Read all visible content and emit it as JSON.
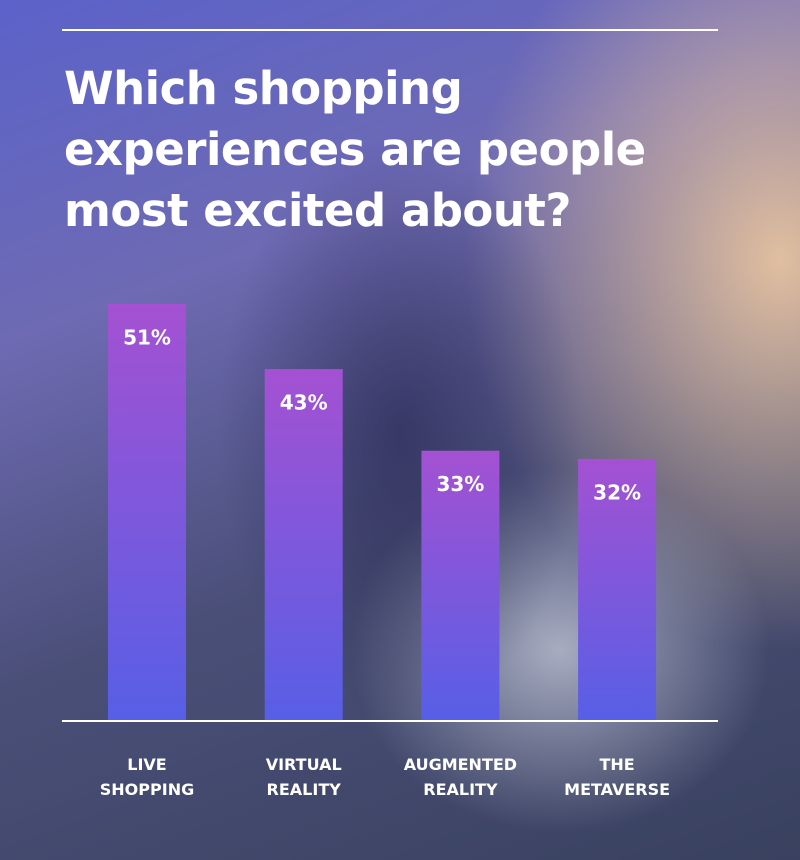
{
  "chart_data": {
    "type": "bar",
    "title": "Which shopping experiences are people most excited about?",
    "categories": [
      "LIVE SHOPPING",
      "VIRTUAL REALITY",
      "AUGMENTED REALITY",
      "THE METAVERSE"
    ],
    "values": [
      51,
      43,
      33,
      32
    ],
    "value_labels": [
      "51%",
      "43%",
      "33%",
      "32%"
    ],
    "gradient": [
      "#a451d2",
      "#575fe6"
    ]
  }
}
